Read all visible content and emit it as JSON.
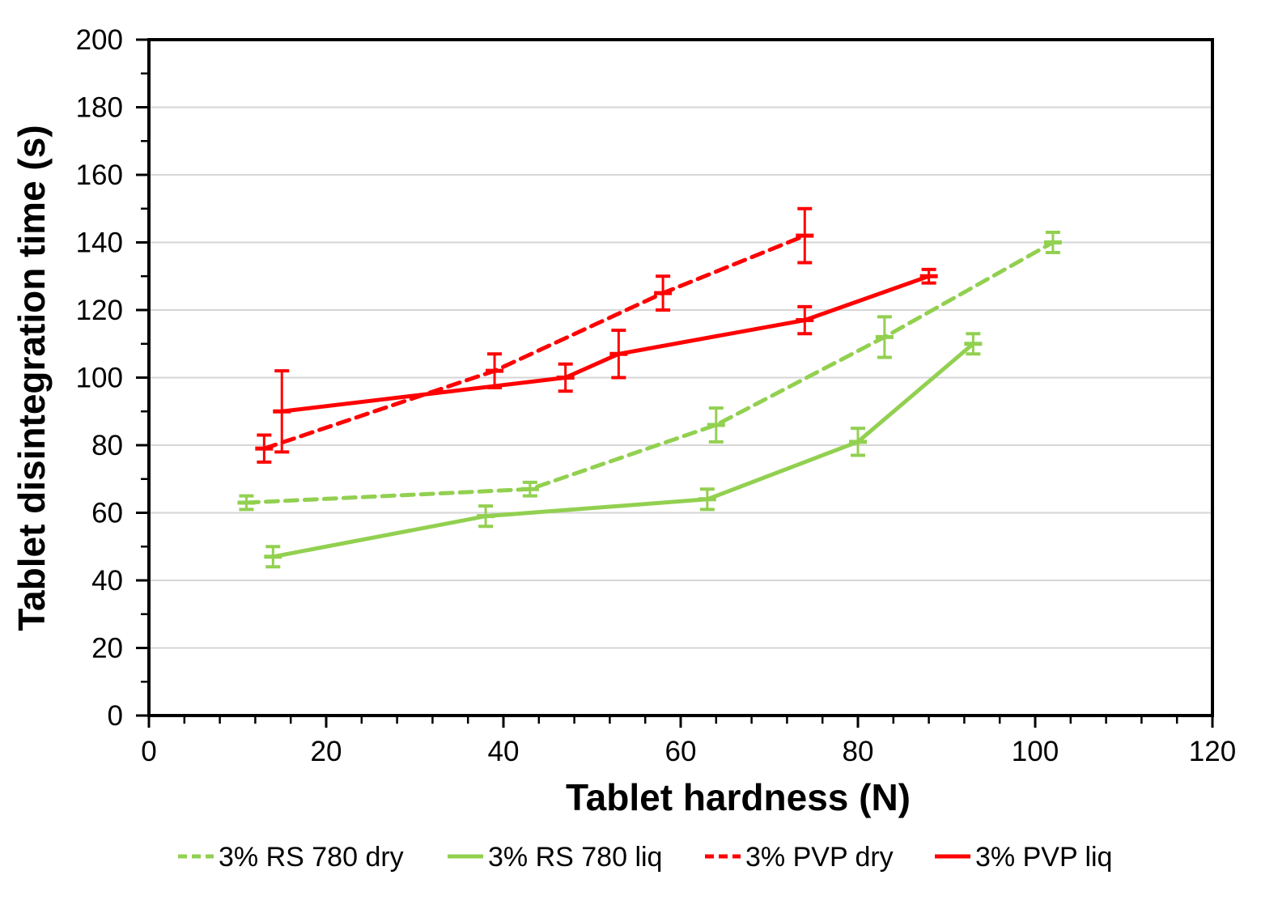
{
  "chart_data": {
    "type": "line",
    "title": "",
    "xlabel": "Tablet hardness (N)",
    "ylabel": "Tablet disintegration time (s)",
    "xlim": [
      0,
      120
    ],
    "ylim": [
      0,
      200
    ],
    "x_ticks": [
      0,
      20,
      40,
      60,
      80,
      100,
      120
    ],
    "y_ticks": [
      0,
      20,
      40,
      60,
      80,
      100,
      120,
      140,
      160,
      180,
      200
    ],
    "x_minor_step": 4,
    "y_minor_step": 10,
    "grid": "horizontal-only",
    "gridline_values": [
      20,
      40,
      60,
      80,
      100,
      120,
      140,
      160,
      180
    ],
    "legend_position": "bottom",
    "colors": {
      "green_series": "#92D050",
      "red_series": "#FF0000",
      "gridline": "#D6D6D6",
      "axis": "#000000",
      "background": "#FFFFFF"
    },
    "series": [
      {
        "name": "3% RS 780 dry",
        "color": "#92D050",
        "style": "dashed",
        "x": [
          11,
          43,
          64,
          83,
          102
        ],
        "y": [
          63,
          67,
          86,
          112,
          140
        ],
        "yerr": [
          2,
          2,
          5,
          6,
          3
        ]
      },
      {
        "name": "3% RS 780 liq",
        "color": "#92D050",
        "style": "solid",
        "x": [
          14,
          38,
          63,
          80,
          93
        ],
        "y": [
          47,
          59,
          64,
          81,
          110
        ],
        "yerr": [
          3,
          3,
          3,
          4,
          3
        ]
      },
      {
        "name": "3% PVP dry",
        "color": "#FF0000",
        "style": "dashed",
        "x": [
          13,
          39,
          58,
          74
        ],
        "y": [
          79,
          102,
          125,
          142
        ],
        "yerr": [
          4,
          5,
          5,
          8
        ]
      },
      {
        "name": "3% PVP liq",
        "color": "#FF0000",
        "style": "solid",
        "x": [
          15,
          47,
          53,
          74,
          88
        ],
        "y": [
          90,
          100,
          107,
          117,
          130
        ],
        "yerr": [
          12,
          4,
          7,
          4,
          2
        ]
      }
    ]
  }
}
